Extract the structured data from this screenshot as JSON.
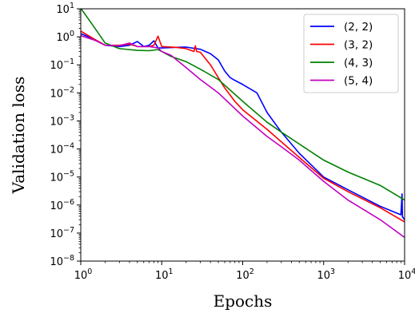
{
  "chart_data": {
    "type": "line",
    "title": "",
    "xlabel": "Epochs",
    "ylabel": "Validation loss",
    "xscale": "log",
    "yscale": "log",
    "xlim": [
      1,
      10000
    ],
    "ylim": [
      1e-08,
      10
    ],
    "x_ticks": [
      {
        "value": 1,
        "base": "10",
        "exp": "0"
      },
      {
        "value": 10,
        "base": "10",
        "exp": "1"
      },
      {
        "value": 100,
        "base": "10",
        "exp": "2"
      },
      {
        "value": 1000,
        "base": "10",
        "exp": "3"
      },
      {
        "value": 10000,
        "base": "10",
        "exp": "4"
      }
    ],
    "y_ticks": [
      {
        "value": 1e-08,
        "base": "10",
        "exp": "−8"
      },
      {
        "value": 1e-07,
        "base": "10",
        "exp": "−7"
      },
      {
        "value": 1e-06,
        "base": "10",
        "exp": "−6"
      },
      {
        "value": 1e-05,
        "base": "10",
        "exp": "−5"
      },
      {
        "value": 0.0001,
        "base": "10",
        "exp": "−4"
      },
      {
        "value": 0.001,
        "base": "10",
        "exp": "−3"
      },
      {
        "value": 0.01,
        "base": "10",
        "exp": "−2"
      },
      {
        "value": 0.1,
        "base": "10",
        "exp": "−1"
      },
      {
        "value": 1,
        "base": "10",
        "exp": "0"
      },
      {
        "value": 10,
        "base": "10",
        "exp": "1"
      }
    ],
    "legend_position": "top-right",
    "grid": false,
    "series": [
      {
        "name": "(2, 2)",
        "color": "#0000ff",
        "points": [
          [
            1,
            1.3
          ],
          [
            1.5,
            0.8
          ],
          [
            2,
            0.5
          ],
          [
            3,
            0.45
          ],
          [
            4,
            0.5
          ],
          [
            5,
            0.68
          ],
          [
            6,
            0.45
          ],
          [
            7,
            0.5
          ],
          [
            8,
            0.72
          ],
          [
            9,
            0.4
          ],
          [
            10,
            0.4
          ],
          [
            15,
            0.42
          ],
          [
            20,
            0.43
          ],
          [
            30,
            0.36
          ],
          [
            40,
            0.25
          ],
          [
            50,
            0.15
          ],
          [
            60,
            0.06
          ],
          [
            70,
            0.035
          ],
          [
            80,
            0.028
          ],
          [
            100,
            0.02
          ],
          [
            150,
            0.01
          ],
          [
            200,
            0.002
          ],
          [
            300,
            0.0004
          ],
          [
            500,
            7e-05
          ],
          [
            1000,
            1e-05
          ],
          [
            2000,
            3.5e-06
          ],
          [
            5000,
            9e-07
          ],
          [
            9000,
            4.5e-07
          ],
          [
            9300,
            2.5e-06
          ],
          [
            9400,
            3.8e-07
          ],
          [
            10000,
            3e-07
          ]
        ]
      },
      {
        "name": "(3, 2)",
        "color": "#ff0000",
        "points": [
          [
            1,
            1.6
          ],
          [
            1.5,
            0.8
          ],
          [
            2,
            0.5
          ],
          [
            3,
            0.5
          ],
          [
            4,
            0.55
          ],
          [
            5,
            0.45
          ],
          [
            7,
            0.45
          ],
          [
            8,
            0.5
          ],
          [
            9,
            1.05
          ],
          [
            10,
            0.45
          ],
          [
            15,
            0.42
          ],
          [
            20,
            0.38
          ],
          [
            25,
            0.3
          ],
          [
            26,
            0.48
          ],
          [
            27,
            0.3
          ],
          [
            30,
            0.28
          ],
          [
            40,
            0.1
          ],
          [
            50,
            0.035
          ],
          [
            60,
            0.015
          ],
          [
            80,
            0.005
          ],
          [
            100,
            0.0025
          ],
          [
            200,
            0.0005
          ],
          [
            300,
            0.00018
          ],
          [
            500,
            5e-05
          ],
          [
            1000,
            9e-06
          ],
          [
            2000,
            3e-06
          ],
          [
            5000,
            8e-07
          ],
          [
            10000,
            2.5e-07
          ]
        ]
      },
      {
        "name": "(4, 3)",
        "color": "#008000",
        "points": [
          [
            1,
            10.5
          ],
          [
            1.5,
            2
          ],
          [
            2,
            0.6
          ],
          [
            3,
            0.38
          ],
          [
            4,
            0.35
          ],
          [
            5,
            0.33
          ],
          [
            7,
            0.32
          ],
          [
            9,
            0.35
          ],
          [
            10,
            0.3
          ],
          [
            13,
            0.2
          ],
          [
            20,
            0.13
          ],
          [
            30,
            0.07
          ],
          [
            50,
            0.03
          ],
          [
            100,
            0.005
          ],
          [
            200,
            0.0009
          ],
          [
            300,
            0.0004
          ],
          [
            500,
            0.00015
          ],
          [
            1000,
            4e-05
          ],
          [
            2000,
            1.5e-05
          ],
          [
            5000,
            5e-06
          ],
          [
            10000,
            1.5e-06
          ]
        ]
      },
      {
        "name": "(5, 4)",
        "color": "#c000c0",
        "points": [
          [
            1,
            1.1
          ],
          [
            1.5,
            0.75
          ],
          [
            2,
            0.5
          ],
          [
            3,
            0.48
          ],
          [
            4,
            0.6
          ],
          [
            5,
            0.45
          ],
          [
            7,
            0.45
          ],
          [
            9,
            0.4
          ],
          [
            10,
            0.3
          ],
          [
            13,
            0.22
          ],
          [
            20,
            0.08
          ],
          [
            30,
            0.03
          ],
          [
            50,
            0.01
          ],
          [
            100,
            0.0015
          ],
          [
            200,
            0.00028
          ],
          [
            300,
            0.00012
          ],
          [
            500,
            4e-05
          ],
          [
            1000,
            7e-06
          ],
          [
            2000,
            1.5e-06
          ],
          [
            5000,
            3e-07
          ],
          [
            10000,
            7e-08
          ]
        ]
      }
    ]
  }
}
